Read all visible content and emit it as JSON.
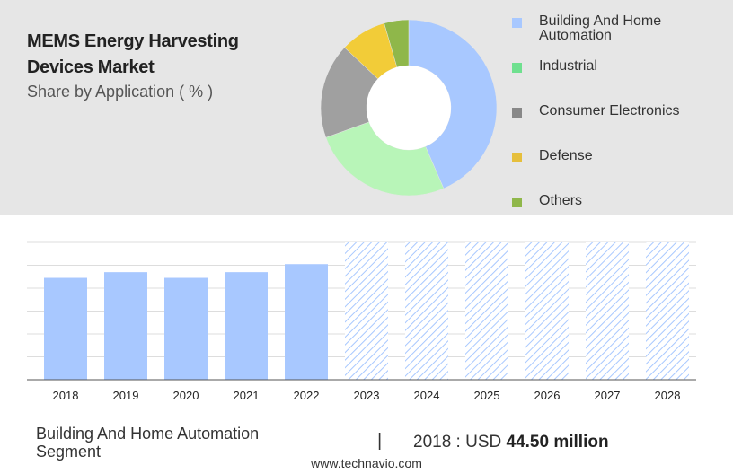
{
  "title": "MEMS Energy Harvesting Devices Market",
  "subtitle": "Share by Application ( % )",
  "chart_data": [
    {
      "type": "pie",
      "title": "",
      "categories": [
        "Building And Home Automation",
        "Industrial",
        "Consumer Electronics",
        "Defense",
        "Others"
      ],
      "values": [
        43.5,
        26,
        17.5,
        8.5,
        4.5
      ],
      "colors": [
        "#a8c8ff",
        "#b8f5b8",
        "#a0a0a0",
        "#f2cc38",
        "#8fb74a"
      ],
      "legend_swatch_colors": [
        "#a8c8ff",
        "#6fe08f",
        "#888888",
        "#e6bf3c",
        "#8fb74a"
      ],
      "legend_position": "right"
    },
    {
      "type": "bar",
      "title": "",
      "categories": [
        "2018",
        "2019",
        "2020",
        "2021",
        "2022",
        "2023",
        "2024",
        "2025",
        "2026",
        "2027",
        "2028"
      ],
      "values": [
        44.5,
        47,
        44.5,
        47,
        50.5,
        60,
        60,
        60,
        60,
        60,
        60
      ],
      "forecast_from": "2023",
      "bar_color": "#a8c8ff",
      "xlabel": "",
      "ylabel": "",
      "ylim": [
        0,
        60
      ],
      "grid": true
    }
  ],
  "segment_label": "Building And Home Automation Segment",
  "divider": "|",
  "stat_prefix": "2018 : USD",
  "stat_value": "44.50 million",
  "footer": "www.technavio.com"
}
